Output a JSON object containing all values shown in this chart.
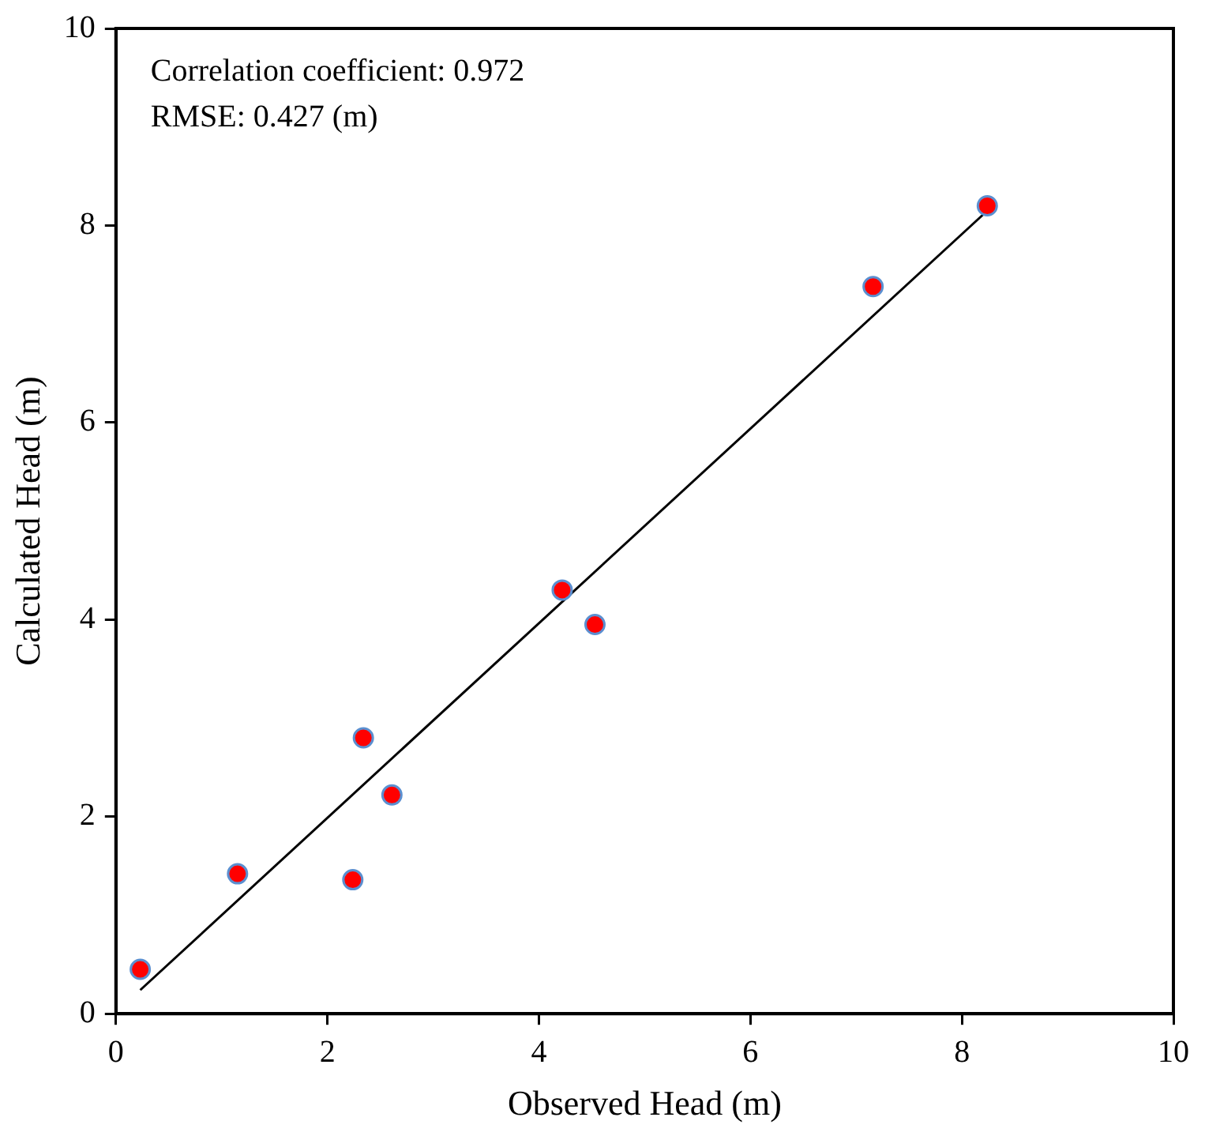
{
  "chart_data": {
    "type": "scatter",
    "xlabel": "Observed Head (m)",
    "ylabel": "Calculated Head (m)",
    "annotations": [
      "Correlation coefficient: 0.972",
      "RMSE: 0.427 (m)"
    ],
    "series": [
      {
        "marker": "circle",
        "color": "#ff0000",
        "x": [
          0.23,
          1.15,
          2.24,
          2.34,
          2.61,
          4.22,
          4.53,
          7.16,
          8.24
        ],
        "values": [
          0.45,
          1.42,
          1.36,
          2.8,
          2.22,
          4.3,
          3.95,
          7.38,
          8.2
        ]
      },
      {
        "type": "line",
        "color": "#000000",
        "x": [
          0.23,
          8.24
        ],
        "values": [
          0.24,
          8.15
        ]
      }
    ],
    "xlim": [
      0,
      10
    ],
    "ylim": [
      0,
      10
    ],
    "xticks": [
      0,
      2,
      4,
      6,
      8,
      10
    ],
    "yticks": [
      0,
      2,
      4,
      6,
      8,
      10
    ],
    "grid": false,
    "legend": false
  }
}
